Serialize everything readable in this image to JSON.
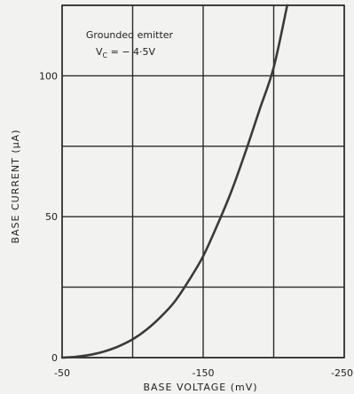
{
  "chart_data": {
    "type": "line",
    "title": "",
    "xlabel": "BASE  VOLTAGE (mV)",
    "ylabel": "BASE  CURRENT  (µA)",
    "xlim": [
      -50,
      -250
    ],
    "ylim": [
      0,
      125
    ],
    "x_ticks": [
      -50,
      -150,
      -250
    ],
    "x_tick_labels": [
      "-50",
      "-150",
      "-250"
    ],
    "y_ticks": [
      0,
      50,
      100
    ],
    "y_tick_labels": [
      "0",
      "50",
      "100"
    ],
    "x_grid": [
      -50,
      -100,
      -150,
      -200,
      -250
    ],
    "y_grid": [
      0,
      25,
      50,
      75,
      100,
      125
    ],
    "grid": true,
    "annotations": [
      "Grounded  emitter",
      "Vₓ = − 4·5V"
    ],
    "annotation_parts": {
      "line1": "Grounded  emitter",
      "vc_base": "V",
      "vc_sub": "C",
      "vc_rest": " = − 4·5V"
    },
    "series": [
      {
        "x": [
          -50,
          -60,
          -70,
          -80,
          -90,
          -100,
          -110,
          -120,
          -130,
          -140,
          -150,
          -160,
          -170,
          -180,
          -190,
          -200,
          -210
        ],
        "y": [
          0,
          0.3,
          1,
          2.2,
          4,
          6.5,
          10,
          14.5,
          20,
          27.5,
          36,
          47,
          59,
          73,
          88,
          103,
          126
        ]
      }
    ]
  }
}
